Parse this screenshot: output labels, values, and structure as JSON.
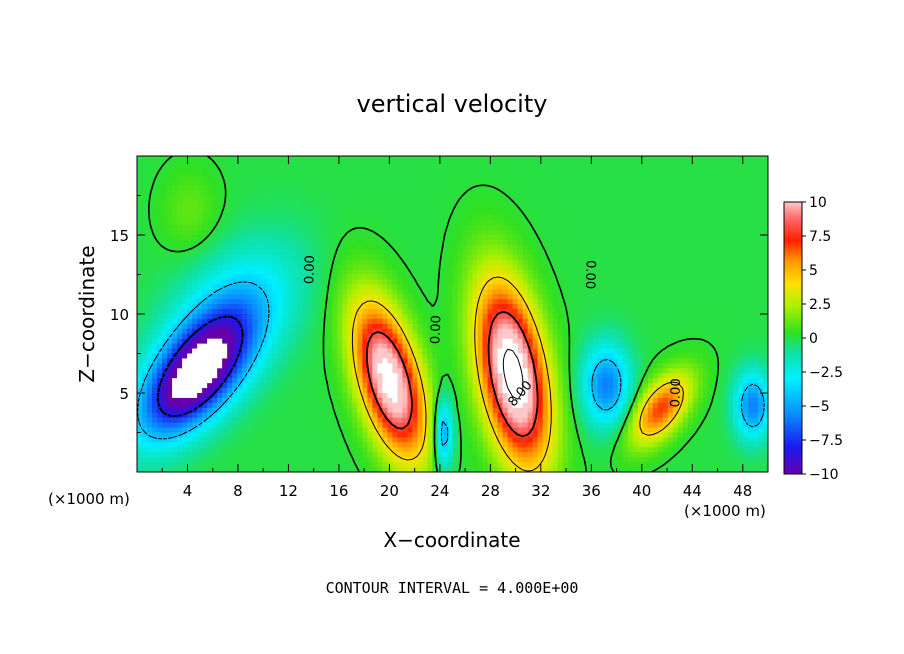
{
  "chart_data": {
    "type": "heatmap",
    "title": "vertical velocity",
    "xlabel": "X−coordinate",
    "ylabel": "Z−coordinate",
    "x_unit_left": "(×1000 m)",
    "x_unit_right": "(×1000 m)",
    "footer": "CONTOUR INTERVAL = 4.000E+00",
    "xlim": [
      0,
      50
    ],
    "ylim": [
      0,
      20
    ],
    "x_ticks": [
      4,
      8,
      12,
      16,
      20,
      24,
      28,
      32,
      36,
      40,
      44,
      48
    ],
    "y_ticks": [
      5,
      10,
      15
    ],
    "colorbar": {
      "range": [
        -10,
        10
      ],
      "ticks": [
        10,
        7.5,
        5,
        2.5,
        0,
        -2.5,
        -5,
        -7.5,
        -10
      ],
      "tick_labels": [
        "10",
        "7.5",
        "5",
        "2.5",
        "0",
        "−2.5",
        "−5",
        "−7.5",
        "−10"
      ]
    },
    "contour_labels": [
      {
        "text": "0.00",
        "x": 14,
        "z": 12.8,
        "angle": -88
      },
      {
        "text": "0.00",
        "x": 24,
        "z": 9.0,
        "angle": -88
      },
      {
        "text": "0.00",
        "x": 35.6,
        "z": 12.5,
        "angle": 92
      },
      {
        "text": "0.00",
        "x": 43,
        "z": 5.0,
        "angle": -88
      },
      {
        "text": "8.00",
        "x": 30.6,
        "z": 4.8,
        "angle": -50
      }
    ],
    "features": [
      {
        "name": "downdraft-west",
        "x": 4.5,
        "z": 6.0,
        "peak": -12,
        "sx": 2.4,
        "sz": 2.6,
        "tilt": 0.65
      },
      {
        "name": "downdraft-west-tail",
        "x": 7.5,
        "z": 10.0,
        "peak": -4,
        "sx": 3.2,
        "sz": 3.0,
        "tilt": 0.5
      },
      {
        "name": "updraft-20",
        "x": 20.0,
        "z": 5.8,
        "peak": 12,
        "sx": 1.7,
        "sz": 3.4,
        "tilt": -0.3
      },
      {
        "name": "updraft-30",
        "x": 29.8,
        "z": 6.2,
        "peak": 13,
        "sx": 1.8,
        "sz": 4.0,
        "tilt": -0.2
      },
      {
        "name": "downdraft-24",
        "x": 24.3,
        "z": 2.4,
        "peak": -6,
        "sx": 0.5,
        "sz": 1.6,
        "tilt": 0
      },
      {
        "name": "downdraft-37",
        "x": 37.2,
        "z": 5.5,
        "peak": -6,
        "sx": 1.3,
        "sz": 1.8,
        "tilt": 0
      },
      {
        "name": "updraft-42",
        "x": 41.5,
        "z": 4.0,
        "peak": 7,
        "sx": 1.4,
        "sz": 1.6,
        "tilt": 0.6
      },
      {
        "name": "downdraft-49",
        "x": 48.8,
        "z": 4.2,
        "peak": -6,
        "sx": 1.0,
        "sz": 1.5,
        "tilt": 0
      },
      {
        "name": "weak-up-top-left",
        "x": 4.2,
        "z": 16.5,
        "peak": 1.2,
        "sx": 1.6,
        "sz": 1.9,
        "tilt": 0
      }
    ]
  }
}
